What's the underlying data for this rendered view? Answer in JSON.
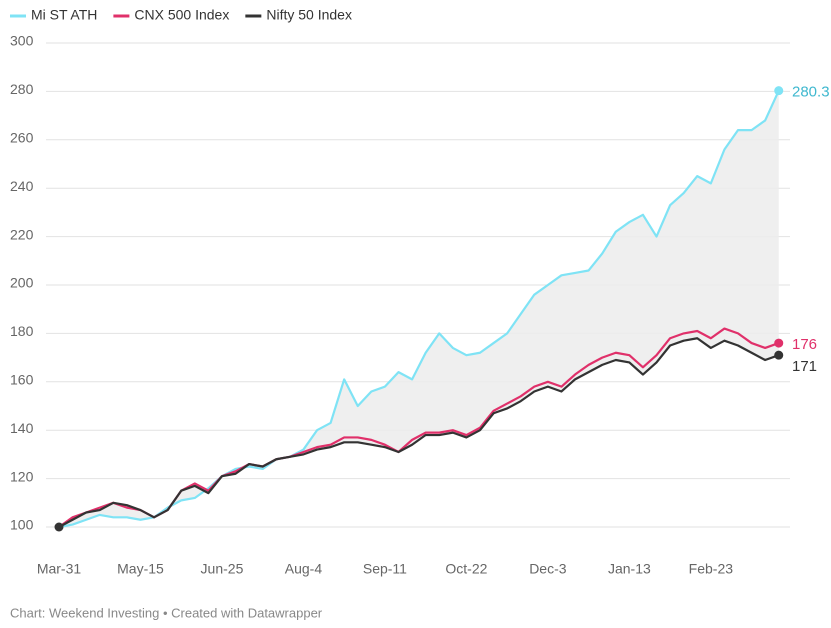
{
  "chart_data": {
    "type": "line",
    "source": "Chart: Weekend Investing • Created with Datawrapper",
    "categories": [
      "Mar-31",
      null,
      null,
      null,
      null,
      null,
      "May-15",
      null,
      null,
      null,
      null,
      null,
      "Jun-25",
      null,
      null,
      null,
      null,
      null,
      "Aug-4",
      null,
      null,
      null,
      null,
      null,
      "Sep-11",
      null,
      null,
      null,
      null,
      null,
      "Oct-22",
      null,
      null,
      null,
      null,
      null,
      "Dec-3",
      null,
      null,
      null,
      null,
      null,
      "Jan-13",
      null,
      null,
      null,
      null,
      null,
      "Feb-23",
      null,
      null,
      null,
      null,
      null
    ],
    "series": [
      {
        "name": "Mi ST ATH",
        "color": "#7fe3f5",
        "values": [
          100,
          101,
          103,
          105,
          104,
          104,
          103,
          104,
          108,
          111,
          112,
          116,
          121,
          124,
          125,
          124,
          128,
          129,
          132,
          140,
          143,
          161,
          150,
          156,
          158,
          164,
          161,
          172,
          180,
          174,
          171,
          172,
          176,
          180,
          188,
          196,
          200,
          204,
          205,
          206,
          213,
          222,
          226,
          229,
          220,
          233,
          238,
          245,
          242,
          256,
          264,
          264,
          268,
          280.3
        ]
      },
      {
        "name": "CNX 500 Index",
        "color": "#e0306a",
        "values": [
          100,
          104,
          106,
          108,
          110,
          108,
          107,
          104,
          107,
          115,
          118,
          115,
          121,
          123,
          126,
          125,
          128,
          129,
          131,
          133,
          134,
          137,
          137,
          136,
          134,
          131,
          136,
          139,
          139,
          140,
          138,
          141,
          148,
          151,
          154,
          158,
          160,
          158,
          163,
          167,
          170,
          172,
          171,
          166,
          171,
          178,
          180,
          181,
          178,
          182,
          180,
          176,
          174,
          176
        ]
      },
      {
        "name": "Nifty 50 Index",
        "color": "#333333",
        "values": [
          100,
          103,
          106,
          107,
          110,
          109,
          107,
          104,
          107,
          115,
          117,
          114,
          121,
          122,
          126,
          125,
          128,
          129,
          130,
          132,
          133,
          135,
          135,
          134,
          133,
          131,
          134,
          138,
          138,
          139,
          137,
          140,
          147,
          149,
          152,
          156,
          158,
          156,
          161,
          164,
          167,
          169,
          168,
          163,
          168,
          175,
          177,
          178,
          174,
          177,
          175,
          172,
          169,
          171
        ]
      }
    ],
    "ylim": [
      100,
      300
    ],
    "yticks": [
      100,
      120,
      140,
      160,
      180,
      200,
      220,
      240,
      260,
      280,
      300
    ],
    "grid": true
  }
}
